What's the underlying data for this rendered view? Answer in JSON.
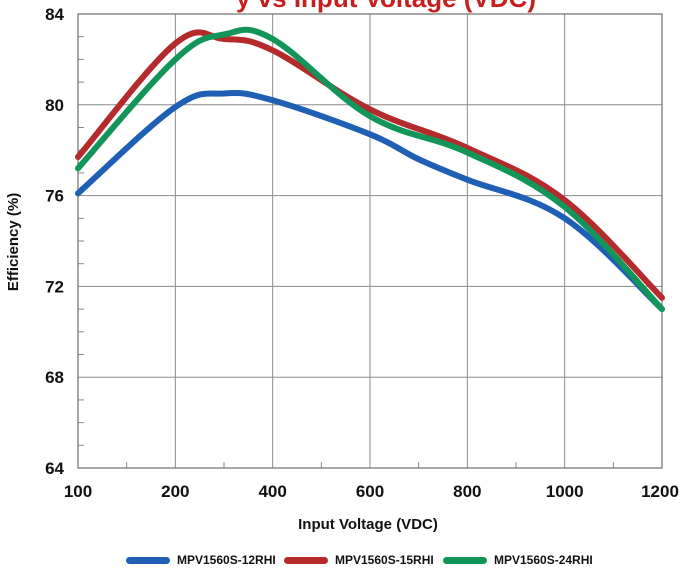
{
  "chart_data": {
    "type": "line",
    "title_visible_part": "y vs Input Voltage (VDC)",
    "xlabel": "Input Voltage (VDC)",
    "ylabel": "Efficiency (%)",
    "x_tick_labels": [
      "100",
      "200",
      "400",
      "600",
      "800",
      "1000",
      "1200"
    ],
    "y_tick_labels": [
      "64",
      "68",
      "72",
      "76",
      "80",
      "84"
    ],
    "ylim": [
      64,
      84
    ],
    "grid": true,
    "legend_position": "bottom",
    "series": [
      {
        "name": "MPV1560S-12RHI",
        "color": "#1f5fb4",
        "points": [
          [
            100,
            76.1
          ],
          [
            200,
            79.9
          ],
          [
            300,
            80.5
          ],
          [
            400,
            80.2
          ],
          [
            600,
            78.7
          ],
          [
            700,
            77.6
          ],
          [
            800,
            76.7
          ],
          [
            1000,
            75.0
          ],
          [
            1200,
            71.0
          ]
        ]
      },
      {
        "name": "MPV1560S-15RHI",
        "color": "#b52a2a",
        "points": [
          [
            100,
            77.7
          ],
          [
            200,
            82.7
          ],
          [
            300,
            82.9
          ],
          [
            400,
            82.4
          ],
          [
            600,
            79.8
          ],
          [
            800,
            78.1
          ],
          [
            1000,
            75.8
          ],
          [
            1200,
            71.5
          ]
        ]
      },
      {
        "name": "MPV1560S-24RHI",
        "color": "#13955a",
        "points": [
          [
            100,
            77.2
          ],
          [
            200,
            82.0
          ],
          [
            300,
            83.1
          ],
          [
            400,
            82.9
          ],
          [
            600,
            79.5
          ],
          [
            800,
            77.9
          ],
          [
            1000,
            75.5
          ],
          [
            1200,
            71.0
          ]
        ]
      }
    ]
  }
}
